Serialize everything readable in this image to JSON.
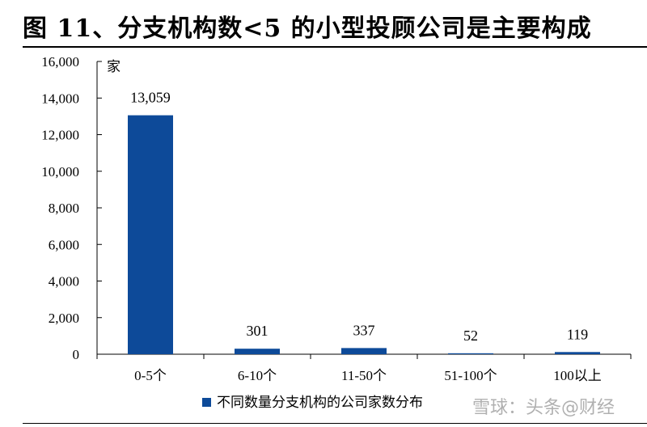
{
  "title": "图 11、分支机构数<5 的小型投顾公司是主要构成",
  "watermark": "雪球：头条@财经",
  "colors": {
    "bar": "#0d4a99",
    "axis": "#000000"
  },
  "chart_data": {
    "type": "bar",
    "unit_label": "家",
    "categories": [
      "0-5个",
      "6-10个",
      "11-50个",
      "51-100个",
      "100以上"
    ],
    "series": [
      {
        "name": "不同数量分支机构的公司家数分布",
        "values": [
          13059,
          301,
          337,
          52,
          119
        ]
      }
    ],
    "data_labels": [
      "13,059",
      "301",
      "337",
      "52",
      "119"
    ],
    "ylim": [
      0,
      16000
    ],
    "yticks": [
      0,
      2000,
      4000,
      6000,
      8000,
      10000,
      12000,
      14000,
      16000
    ],
    "ytick_labels": [
      "0",
      "2,000",
      "4,000",
      "6,000",
      "8,000",
      "10,000",
      "12,000",
      "14,000",
      "16,000"
    ],
    "grid": false,
    "legend": "bottom-right"
  }
}
